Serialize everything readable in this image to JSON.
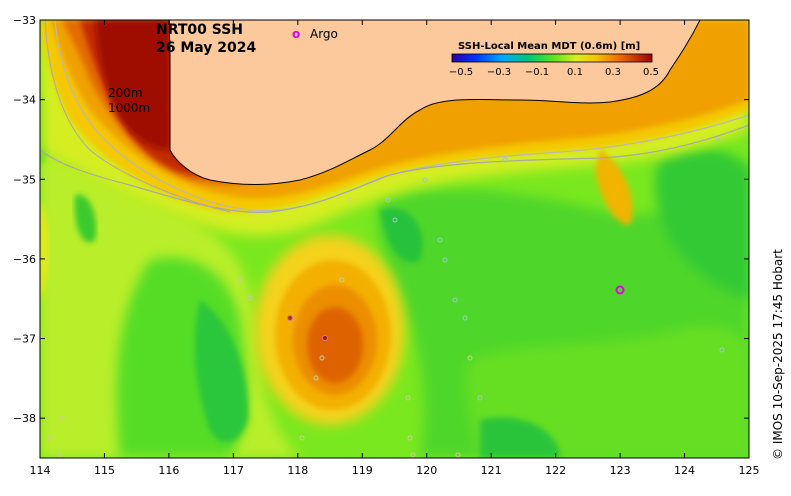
{
  "map": {
    "title_line1": "NRT00 SSH",
    "title_line2": "26 May 2024",
    "legend_argo": "Argo",
    "legend_argo_symbol": "o",
    "isobath_200": "200m",
    "isobath_1000": "1000m",
    "colorbar_title": "SSH-Local Mean MDT (0.6m) [m]",
    "colorbar_ticks": [
      "−0.5",
      "−0.3",
      "−0.1",
      "0.1",
      "0.3",
      "0.5"
    ],
    "credit": "© IMOS 10-Sep-2025 17:45 Hobart",
    "x_ticks": [
      "114",
      "115",
      "116",
      "117",
      "118",
      "119",
      "120",
      "121",
      "122",
      "123",
      "124",
      "125"
    ],
    "y_ticks": [
      "−33",
      "−34",
      "−35",
      "−36",
      "−37",
      "−38"
    ],
    "lon_range": [
      114,
      125
    ],
    "lat_range": [
      -38.5,
      -33
    ],
    "colors": {
      "land": "#fbc99c",
      "pos_high": "#9e0b00",
      "pos_mid": "#d94a00",
      "pos_low": "#f2a200",
      "near_zero": "#c7f13a",
      "neg_low": "#66e61a",
      "neg_mid": "#2bcc33",
      "argo": "#e000e0"
    }
  }
}
